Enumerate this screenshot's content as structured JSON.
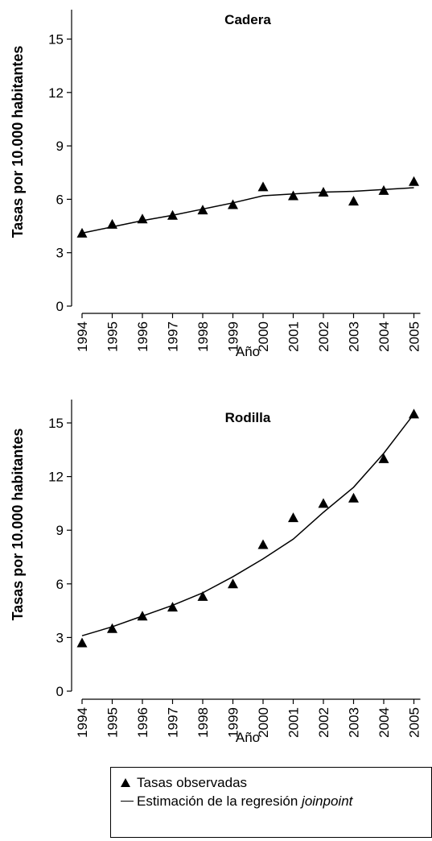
{
  "chart_data": [
    {
      "type": "line",
      "title": "Cadera",
      "ylabel": "Tasas por 10.000 habitantes",
      "xlabel": "Año",
      "ylim": [
        0,
        16
      ],
      "yticks": [
        0,
        3,
        6,
        9,
        12,
        15
      ],
      "categories": [
        "1994",
        "1995",
        "1996",
        "1997",
        "1998",
        "1999",
        "2000",
        "2001",
        "2002",
        "2003",
        "2004",
        "2005"
      ],
      "series": [
        {
          "kind": "observed",
          "marker": "triangle",
          "values": [
            4.1,
            4.6,
            4.9,
            5.1,
            5.4,
            5.7,
            6.7,
            6.2,
            6.4,
            5.9,
            6.5,
            7.0
          ]
        },
        {
          "kind": "estimate",
          "marker": "line",
          "values": [
            4.1,
            4.45,
            4.8,
            5.1,
            5.45,
            5.8,
            6.2,
            6.3,
            6.4,
            6.45,
            6.55,
            6.65
          ]
        }
      ]
    },
    {
      "type": "line",
      "title": "Rodilla",
      "ylabel": "Tasas por 10.000 habitantes",
      "xlabel": "Año",
      "ylim": [
        0,
        16
      ],
      "yticks": [
        0,
        3,
        6,
        9,
        12,
        15
      ],
      "categories": [
        "1994",
        "1995",
        "1996",
        "1997",
        "1998",
        "1999",
        "2000",
        "2001",
        "2002",
        "2003",
        "2004",
        "2005"
      ],
      "series": [
        {
          "kind": "observed",
          "marker": "triangle",
          "values": [
            2.7,
            3.5,
            4.2,
            4.7,
            5.3,
            6.0,
            8.2,
            9.7,
            10.5,
            10.8,
            13.0,
            15.5
          ]
        },
        {
          "kind": "estimate",
          "marker": "line",
          "values": [
            3.1,
            3.6,
            4.2,
            4.8,
            5.5,
            6.4,
            7.4,
            8.5,
            10.0,
            11.4,
            13.3,
            15.5
          ]
        }
      ]
    }
  ],
  "legend": {
    "observed_label": "Tasas observadas",
    "estimate_label_prefix": "Estimación de la regresión ",
    "estimate_label_italic": "joinpoint",
    "text_color": "#000000"
  }
}
